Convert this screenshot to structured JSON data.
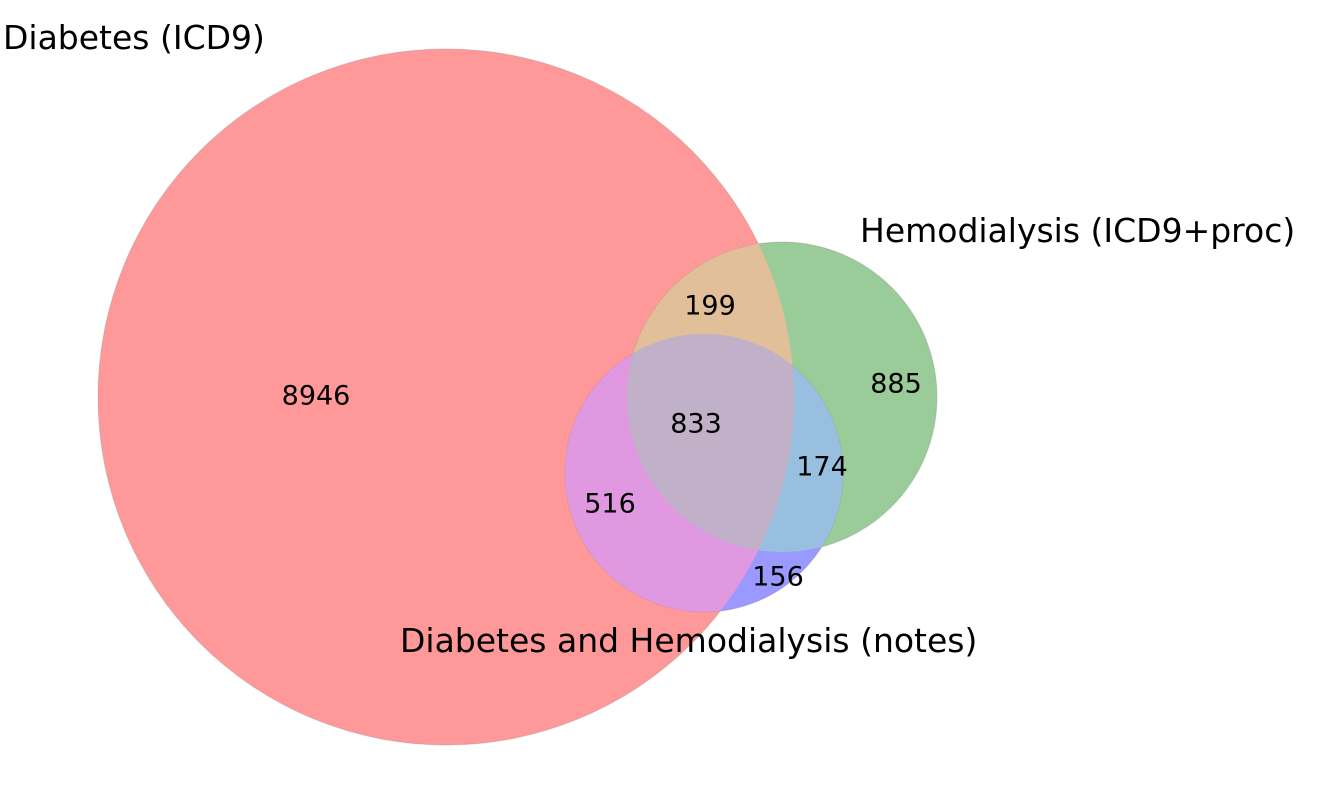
{
  "colors": {
    "set_a": "#ff9999",
    "set_b": "#99cc99",
    "set_c": "#9999ff",
    "a_and_b": "#e0bf99",
    "a_and_c": "#e099e0",
    "b_and_c": "#99bfe0",
    "a_b_c": "#c0b0c8"
  },
  "sets": {
    "a": {
      "label": "Diabetes (ICD9)"
    },
    "b": {
      "label": "Hemodialysis (ICD9+proc)"
    },
    "c": {
      "label": "Diabetes and  Hemodialysis (notes)"
    }
  },
  "regions": {
    "a_only": "8946",
    "b_only": "885",
    "c_only": "156",
    "a_b": "199",
    "a_c": "516",
    "b_c": "174",
    "a_b_c": "833"
  }
}
